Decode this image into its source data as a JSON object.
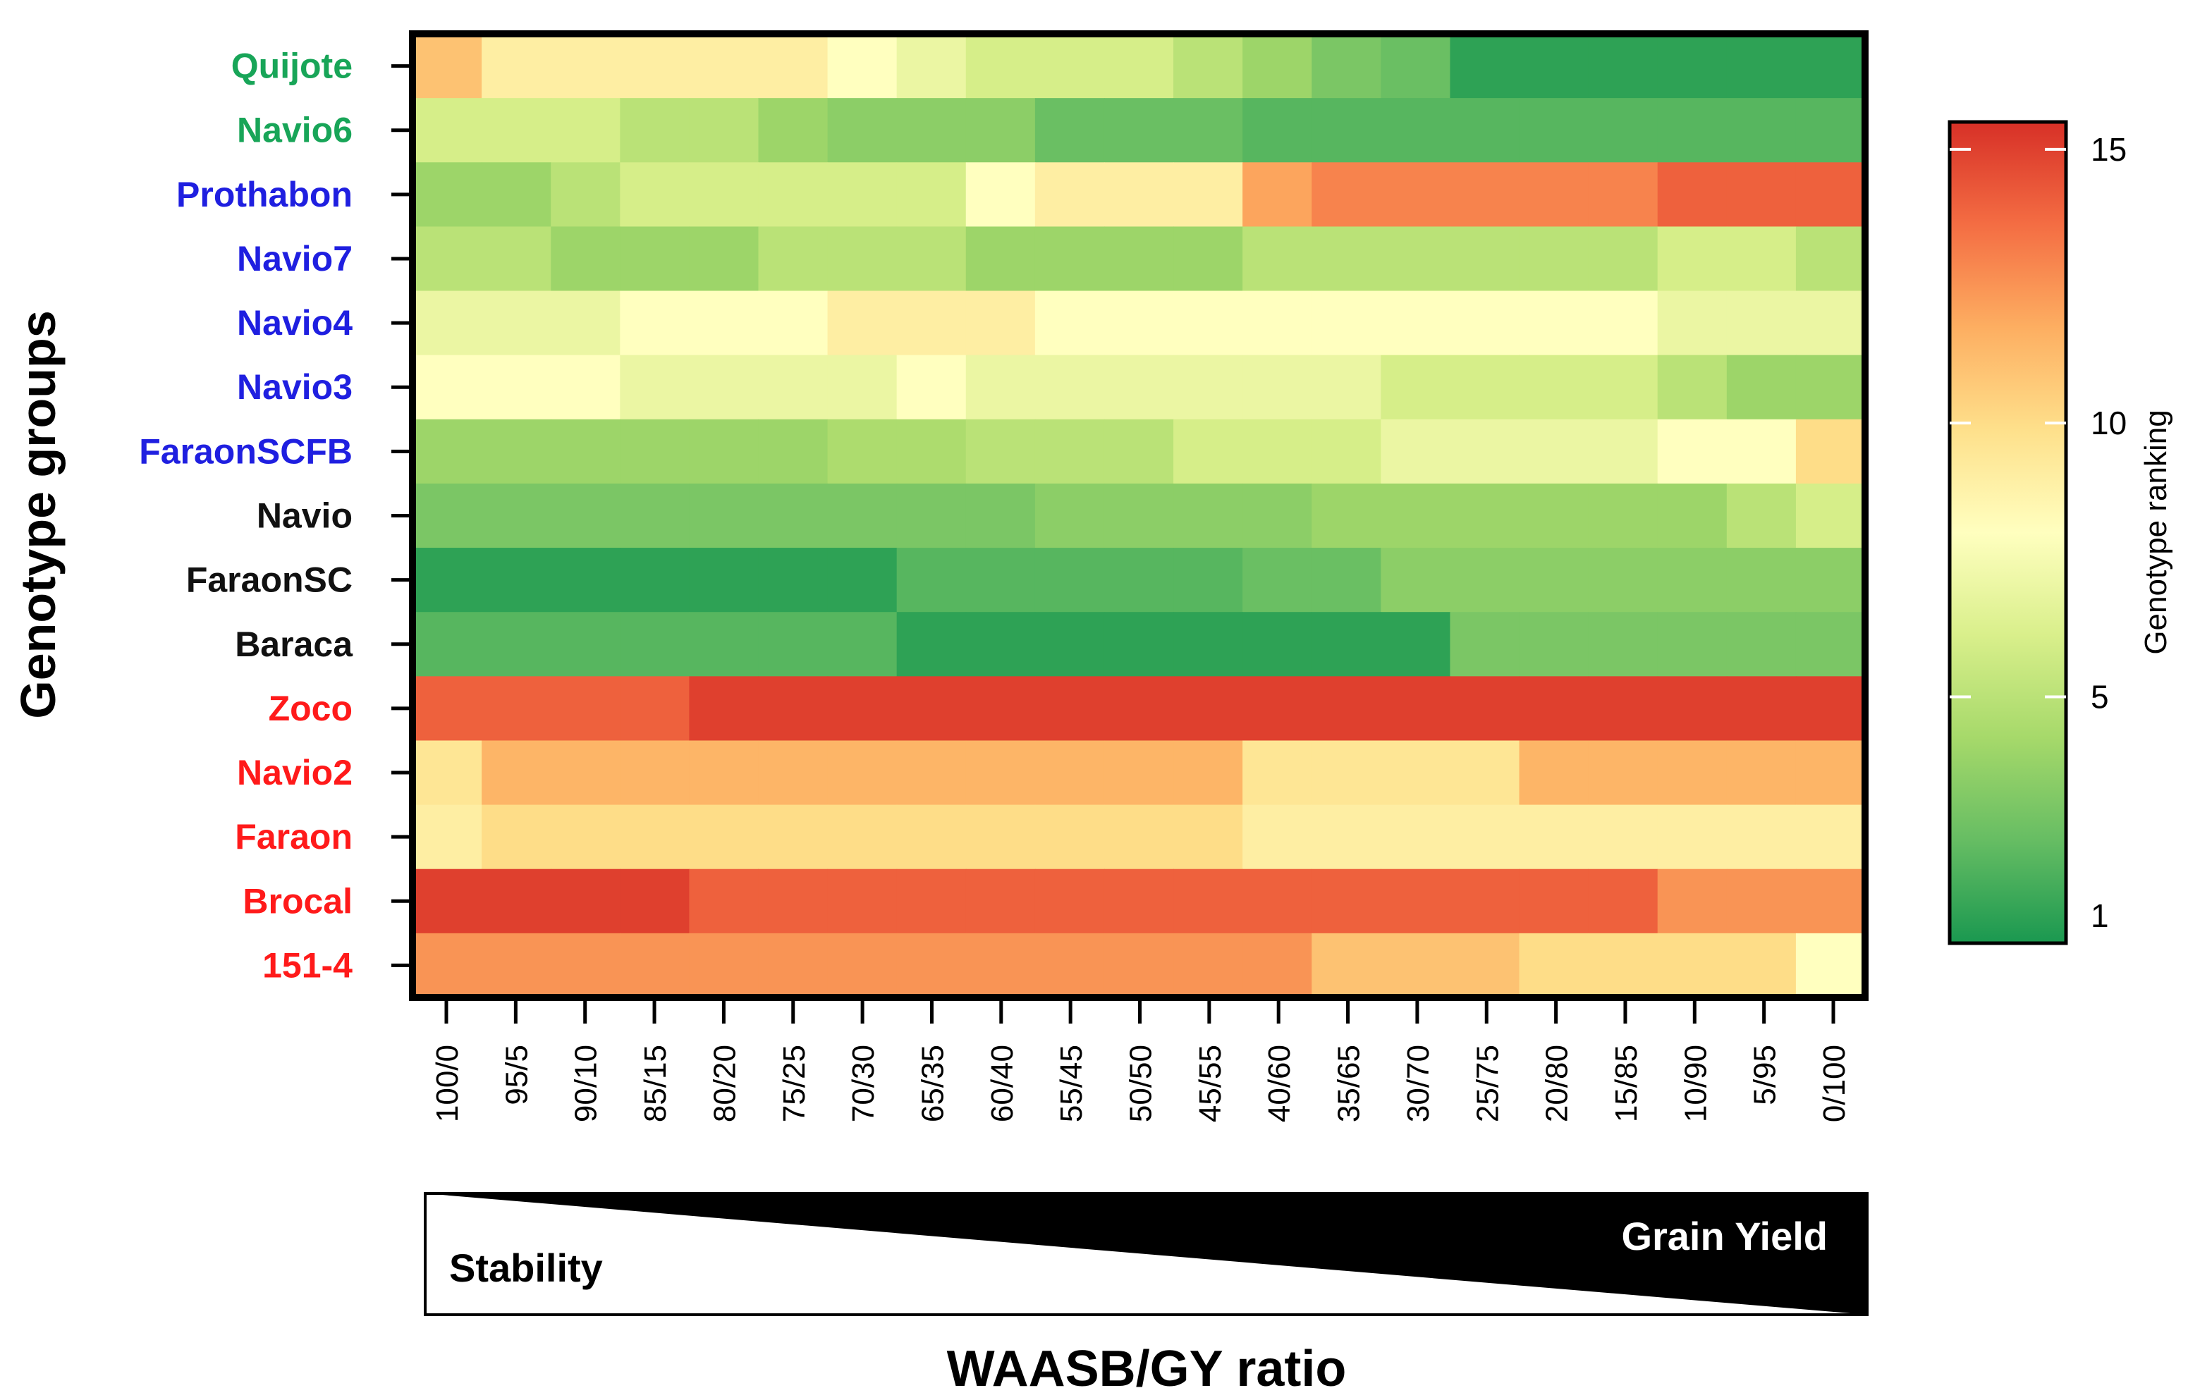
{
  "chart_data": {
    "type": "heatmap",
    "title": "",
    "ylabel": "Genotype groups",
    "xlabel": "WAASB/GY ratio",
    "colorbar_label": "Genotype ranking",
    "colorbar_ticks": [
      1,
      5,
      10,
      15
    ],
    "colorbar_range": [
      0.5,
      15.5
    ],
    "colorscale": [
      "#1a9850",
      "#66bd63",
      "#a6d96a",
      "#d9ef8b",
      "#ffffbf",
      "#fee08b",
      "#fdae61",
      "#f46d43",
      "#d73027"
    ],
    "x": [
      "100/0",
      "95/5",
      "90/10",
      "85/15",
      "80/20",
      "75/25",
      "70/30",
      "65/35",
      "60/40",
      "55/45",
      "50/50",
      "45/55",
      "40/60",
      "35/65",
      "30/70",
      "25/75",
      "20/80",
      "15/85",
      "10/90",
      "5/95",
      "0/100"
    ],
    "rows": [
      {
        "name": "Quijote",
        "color": "#18a558",
        "values": [
          11,
          9,
          9,
          9,
          9,
          9,
          8,
          7,
          6,
          6,
          6,
          5,
          4,
          3,
          2.5,
          1,
          1,
          1,
          1,
          1,
          1
        ]
      },
      {
        "name": "Navio6",
        "color": "#18a558",
        "values": [
          6,
          6,
          6,
          5,
          5,
          4,
          3.5,
          3.5,
          3.5,
          2.5,
          2.5,
          2.5,
          2,
          2,
          2,
          2,
          2,
          2,
          2,
          2,
          2
        ]
      },
      {
        "name": "Prothabon",
        "color": "#1f1fe0",
        "values": [
          4,
          4,
          5,
          6,
          6,
          6,
          6,
          6,
          8,
          9,
          9,
          9,
          12,
          13,
          13,
          13,
          13,
          13,
          14,
          14,
          14
        ]
      },
      {
        "name": "Navio7",
        "color": "#1f1fe0",
        "values": [
          5,
          5,
          4,
          4,
          4,
          5,
          5,
          5,
          4,
          4,
          4,
          4,
          5,
          5,
          5,
          5,
          5,
          5,
          6,
          6,
          5
        ]
      },
      {
        "name": "Navio4",
        "color": "#1f1fe0",
        "values": [
          7,
          7,
          7,
          8,
          8,
          8,
          9,
          9,
          9,
          8,
          8,
          8,
          8,
          8,
          8,
          8,
          8,
          8,
          7,
          7,
          7
        ]
      },
      {
        "name": "Navio3",
        "color": "#1f1fe0",
        "values": [
          8,
          8,
          8,
          7,
          7,
          7,
          7,
          8,
          7,
          7,
          7,
          7,
          7,
          7,
          6,
          6,
          6,
          6,
          5,
          4,
          4
        ]
      },
      {
        "name": "FaraonSCFB",
        "color": "#1f1fe0",
        "values": [
          4,
          4,
          4,
          4,
          4,
          4,
          4.5,
          4.5,
          5,
          5,
          5,
          6,
          6,
          6,
          7,
          7,
          7,
          7,
          8,
          8,
          10
        ]
      },
      {
        "name": "Navio",
        "color": "#111111",
        "values": [
          3,
          3,
          3,
          3,
          3,
          3,
          3,
          3,
          3,
          3.5,
          3.5,
          3.5,
          3.5,
          4,
          4,
          4,
          4,
          4,
          4,
          5,
          6
        ]
      },
      {
        "name": "FaraonSC",
        "color": "#111111",
        "values": [
          1,
          1,
          1,
          1,
          1,
          1,
          1,
          2,
          2,
          2,
          2,
          2,
          2.5,
          2.5,
          3.5,
          3.5,
          3.5,
          3.5,
          3.5,
          3.5,
          3.5
        ]
      },
      {
        "name": "Baraca",
        "color": "#111111",
        "values": [
          2,
          2,
          2,
          2,
          2,
          2,
          2,
          1,
          1,
          1,
          1,
          1,
          1,
          1,
          1,
          3,
          3,
          3,
          3,
          3,
          3
        ]
      },
      {
        "name": "Zoco",
        "color": "#ff1a1a",
        "values": [
          14,
          14,
          14,
          14,
          15,
          15,
          15,
          15,
          15,
          15,
          15,
          15,
          15,
          15,
          15,
          15,
          15,
          15,
          15,
          15,
          15
        ]
      },
      {
        "name": "Navio2",
        "color": "#ff1a1a",
        "values": [
          9.5,
          11.5,
          11.5,
          11.5,
          11.5,
          11.5,
          11.5,
          11.5,
          11.5,
          11.5,
          11.5,
          11.5,
          9.5,
          9.5,
          9.5,
          9.5,
          11.5,
          11.5,
          11.5,
          11.5,
          11.5
        ]
      },
      {
        "name": "Faraon",
        "color": "#ff1a1a",
        "values": [
          9,
          10,
          10,
          10,
          10,
          10,
          10,
          10,
          10,
          10,
          10,
          10,
          9,
          9,
          9,
          9,
          9,
          9,
          9,
          9,
          9
        ]
      },
      {
        "name": "Brocal",
        "color": "#ff1a1a",
        "values": [
          15,
          15,
          15,
          15,
          14,
          14,
          14,
          14,
          14,
          14,
          14,
          14,
          14,
          14,
          14,
          14,
          14,
          14,
          12.5,
          12.5,
          12.5
        ]
      },
      {
        "name": "151-4",
        "color": "#ff1a1a",
        "values": [
          12.5,
          12.5,
          12.5,
          12.5,
          12.5,
          12.5,
          12.5,
          12.5,
          12.5,
          12.5,
          12.5,
          12.5,
          12.5,
          11,
          11,
          11,
          10,
          10,
          10,
          10,
          8
        ]
      }
    ],
    "bottom_wedge": {
      "left_label": "Stability",
      "right_label": "Grain Yield"
    }
  }
}
